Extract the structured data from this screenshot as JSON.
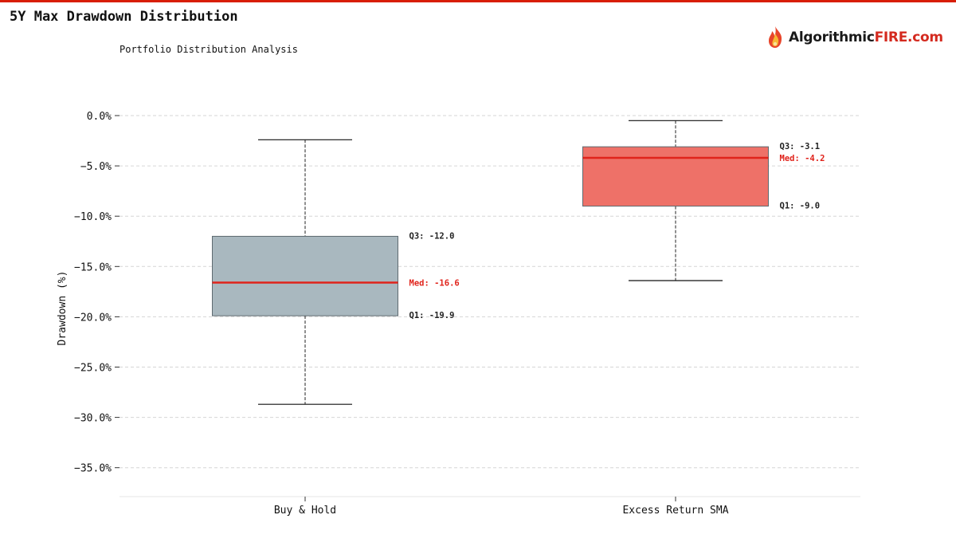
{
  "title": "5Y Max Drawdown Distribution",
  "subtitle": "Portfolio Distribution Analysis",
  "brand": {
    "part1": "Algorithmic",
    "part2": "FIRE.com",
    "icon": "flame-icon",
    "color_dark": "#1a1a1a",
    "color_red": "#d42a1f"
  },
  "colors": {
    "accent_bar": "#d81e06",
    "median_line": "#e0231b"
  },
  "chart_data": {
    "type": "box",
    "ylabel": "Drawdown (%)",
    "ylim": [
      -38,
      1.5
    ],
    "yticks": [
      0,
      -5,
      -10,
      -15,
      -20,
      -25,
      -30,
      -35
    ],
    "ytick_labels": [
      "0.0%",
      "−5.0%",
      "−10.0%",
      "−15.0%",
      "−20.0%",
      "−25.0%",
      "−30.0%",
      "−35.0%"
    ],
    "grid": true,
    "categories": [
      "Buy & Hold",
      "Excess Return SMA"
    ],
    "boxes": [
      {
        "category": "Buy & Hold",
        "whisker_high": -2.4,
        "q3": -12.0,
        "median": -16.6,
        "q1": -19.9,
        "whisker_low": -28.7,
        "color": "#a9b8bf",
        "label_q3": "Q3: -12.0",
        "label_median": "Med: -16.6",
        "label_q1": "Q1: -19.9"
      },
      {
        "category": "Excess Return SMA",
        "whisker_high": -0.5,
        "q3": -3.1,
        "median": -4.2,
        "q1": -9.0,
        "whisker_low": -16.4,
        "color": "#ee7168",
        "label_q3": "Q3: -3.1",
        "label_median": "Med: -4.2",
        "label_q1": "Q1: -9.0"
      }
    ]
  }
}
